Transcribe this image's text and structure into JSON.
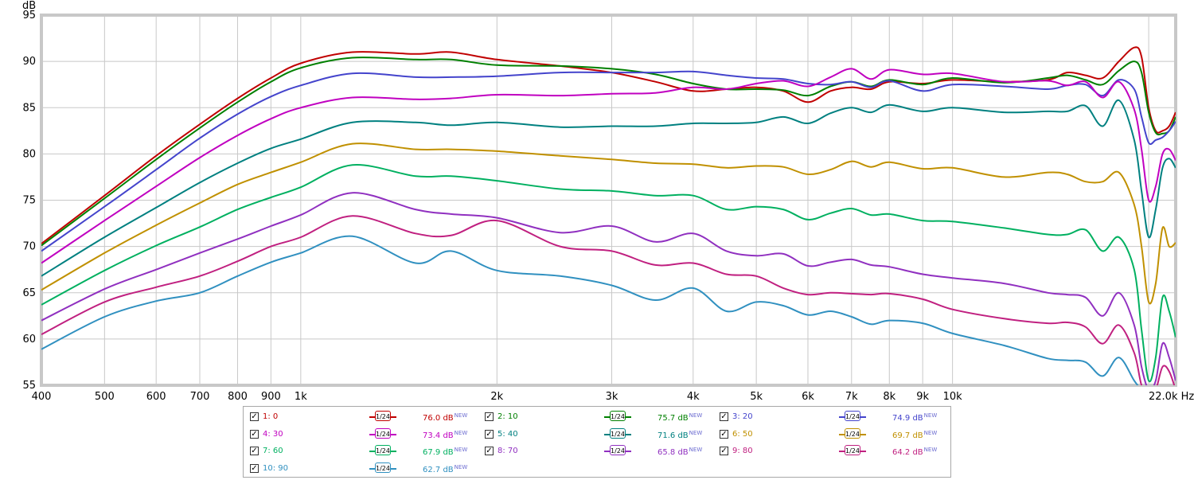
{
  "chart_data": {
    "type": "line",
    "ylabel": "dB",
    "ylim": [
      55,
      95
    ],
    "yticks": [
      55,
      60,
      65,
      70,
      75,
      80,
      85,
      90,
      95
    ],
    "xscale": "log",
    "xlim": [
      400,
      22000
    ],
    "xticks": [
      {
        "v": 400,
        "label": "400"
      },
      {
        "v": 500,
        "label": "500"
      },
      {
        "v": 600,
        "label": "600"
      },
      {
        "v": 700,
        "label": "700"
      },
      {
        "v": 800,
        "label": "800"
      },
      {
        "v": 900,
        "label": "900"
      },
      {
        "v": 1000,
        "label": "1k"
      },
      {
        "v": 2000,
        "label": "2k"
      },
      {
        "v": 3000,
        "label": "3k"
      },
      {
        "v": 4000,
        "label": "4k"
      },
      {
        "v": 5000,
        "label": "5k"
      },
      {
        "v": 6000,
        "label": "6k"
      },
      {
        "v": 7000,
        "label": "7k"
      },
      {
        "v": 8000,
        "label": "8k"
      },
      {
        "v": 9000,
        "label": "9k"
      },
      {
        "v": 10000,
        "label": "10k"
      },
      {
        "v": 22000,
        "label": "22.0k Hz"
      }
    ],
    "grid": true,
    "x": [
      400,
      500,
      600,
      700,
      800,
      900,
      1000,
      1200,
      1500,
      1700,
      2000,
      2500,
      3000,
      3500,
      4000,
      4500,
      5000,
      5500,
      6000,
      6500,
      7000,
      7500,
      8000,
      9000,
      10000,
      12000,
      14000,
      15000,
      16000,
      17000,
      18000,
      19000,
      19500,
      20000,
      20500,
      21000,
      21500,
      22000
    ],
    "series": [
      {
        "name": "1: 0",
        "color": "#c00000",
        "values": [
          70.3,
          75.5,
          79.8,
          83.2,
          86.0,
          88.2,
          89.8,
          91.0,
          90.8,
          91.0,
          90.2,
          89.5,
          88.8,
          87.8,
          86.8,
          87.0,
          87.2,
          86.8,
          85.6,
          86.8,
          87.2,
          87.0,
          87.8,
          87.6,
          88.0,
          87.8,
          88.0,
          88.8,
          88.5,
          88.2,
          90.0,
          91.5,
          90.5,
          85.0,
          82.5,
          82.5,
          83.0,
          84.5
        ]
      },
      {
        "name": "2: 10",
        "color": "#008000",
        "values": [
          70.1,
          75.2,
          79.4,
          82.8,
          85.6,
          87.8,
          89.3,
          90.4,
          90.2,
          90.2,
          89.6,
          89.5,
          89.2,
          88.6,
          87.6,
          87.0,
          87.0,
          86.9,
          86.3,
          87.3,
          87.8,
          87.3,
          88.0,
          87.5,
          88.2,
          87.7,
          88.2,
          88.5,
          88.0,
          87.5,
          89.0,
          90.0,
          88.8,
          84.5,
          82.3,
          82.2,
          82.5,
          84.0
        ]
      },
      {
        "name": "3: 20",
        "color": "#4444cc",
        "values": [
          69.5,
          74.3,
          78.3,
          81.7,
          84.3,
          86.2,
          87.4,
          88.7,
          88.3,
          88.3,
          88.4,
          88.8,
          88.8,
          88.8,
          88.9,
          88.5,
          88.2,
          88.1,
          87.6,
          87.5,
          87.8,
          87.2,
          87.9,
          86.8,
          87.5,
          87.3,
          87.0,
          87.4,
          87.5,
          86.3,
          88.0,
          87.0,
          84.0,
          81.2,
          81.5,
          81.8,
          82.5,
          83.5
        ]
      },
      {
        "name": "4: 30",
        "color": "#c000c0",
        "values": [
          68.2,
          72.8,
          76.5,
          79.6,
          82.0,
          83.8,
          85.0,
          86.1,
          85.9,
          86.0,
          86.4,
          86.3,
          86.5,
          86.6,
          87.2,
          87.0,
          87.6,
          87.9,
          87.3,
          88.3,
          89.2,
          88.1,
          89.1,
          88.6,
          88.7,
          87.8,
          87.9,
          87.4,
          87.8,
          86.1,
          87.8,
          84.8,
          80.5,
          75.0,
          76.5,
          80.0,
          80.5,
          79.3
        ]
      },
      {
        "name": "5: 40",
        "color": "#008080",
        "values": [
          66.8,
          71.0,
          74.2,
          76.9,
          79.0,
          80.6,
          81.6,
          83.4,
          83.4,
          83.1,
          83.4,
          82.9,
          83.0,
          83.0,
          83.3,
          83.3,
          83.4,
          84.0,
          83.3,
          84.4,
          85.0,
          84.5,
          85.3,
          84.6,
          85.0,
          84.5,
          84.6,
          84.6,
          85.2,
          83.0,
          85.8,
          81.5,
          76.0,
          71.0,
          74.0,
          78.5,
          79.5,
          78.5
        ]
      },
      {
        "name": "6: 50",
        "color": "#c09000",
        "values": [
          65.3,
          69.3,
          72.3,
          74.7,
          76.7,
          78.0,
          79.1,
          81.1,
          80.5,
          80.5,
          80.3,
          79.8,
          79.4,
          79.0,
          78.9,
          78.5,
          78.7,
          78.6,
          77.8,
          78.3,
          79.2,
          78.6,
          79.1,
          78.4,
          78.5,
          77.5,
          78.0,
          77.8,
          77.0,
          77.0,
          78.0,
          74.5,
          70.0,
          64.0,
          66.0,
          72.0,
          70.0,
          70.4
        ]
      },
      {
        "name": "7: 60",
        "color": "#00b060",
        "values": [
          63.7,
          67.4,
          70.1,
          72.1,
          74.0,
          75.3,
          76.4,
          78.8,
          77.6,
          77.6,
          77.1,
          76.2,
          76.0,
          75.5,
          75.5,
          74.0,
          74.3,
          74.0,
          72.9,
          73.6,
          74.1,
          73.4,
          73.5,
          72.8,
          72.7,
          72.0,
          71.3,
          71.3,
          71.8,
          69.5,
          71.0,
          67.5,
          61.0,
          55.5,
          58.0,
          64.5,
          63.0,
          60.2
        ]
      },
      {
        "name": "8: 70",
        "color": "#9030c0",
        "values": [
          62.0,
          65.4,
          67.5,
          69.3,
          70.8,
          72.2,
          73.4,
          75.8,
          74.0,
          73.5,
          73.1,
          71.5,
          72.2,
          70.5,
          71.4,
          69.5,
          69.0,
          69.2,
          67.9,
          68.3,
          68.6,
          68.0,
          67.8,
          67.0,
          66.6,
          66.0,
          65.0,
          64.8,
          64.5,
          62.5,
          65.0,
          61.5,
          57.0,
          54.5,
          55.5,
          59.5,
          58.0,
          55.5
        ]
      },
      {
        "name": "9: 80",
        "color": "#c02080",
        "values": [
          60.5,
          64.0,
          65.6,
          66.8,
          68.4,
          70.0,
          71.0,
          73.3,
          71.4,
          71.2,
          72.8,
          70.0,
          69.5,
          68.0,
          68.2,
          67.0,
          66.8,
          65.5,
          64.8,
          65.0,
          64.9,
          64.8,
          64.9,
          64.3,
          63.2,
          62.2,
          61.7,
          61.8,
          61.3,
          59.5,
          61.5,
          58.5,
          55.0,
          54.0,
          54.5,
          57.0,
          56.5,
          54.5
        ]
      },
      {
        "name": "10: 90",
        "color": "#3090c0",
        "values": [
          58.9,
          62.4,
          64.1,
          65.0,
          66.8,
          68.3,
          69.3,
          71.1,
          68.2,
          69.5,
          67.4,
          66.8,
          65.8,
          64.2,
          65.5,
          63.0,
          64.0,
          63.6,
          62.6,
          63.0,
          62.4,
          61.6,
          62.0,
          61.7,
          60.6,
          59.3,
          57.9,
          57.7,
          57.5,
          56.0,
          58.0,
          55.5,
          54.5,
          54.0,
          54.0,
          54.5,
          54.5,
          54.0
        ]
      }
    ]
  },
  "legend": [
    {
      "name": "1: 0",
      "color": "#c00000",
      "smooth": "1/24",
      "level": "76.0 dB",
      "tag": "NEW"
    },
    {
      "name": "2: 10",
      "color": "#008000",
      "smooth": "1/24",
      "level": "75.7 dB",
      "tag": "NEW"
    },
    {
      "name": "3: 20",
      "color": "#4444cc",
      "smooth": "1/24",
      "level": "74.9 dB",
      "tag": "NEW"
    },
    {
      "name": "4: 30",
      "color": "#c000c0",
      "smooth": "1/24",
      "level": "73.4 dB",
      "tag": "NEW"
    },
    {
      "name": "5: 40",
      "color": "#008080",
      "smooth": "1/24",
      "level": "71.6 dB",
      "tag": "NEW"
    },
    {
      "name": "6: 50",
      "color": "#c09000",
      "smooth": "1/24",
      "level": "69.7 dB",
      "tag": "NEW"
    },
    {
      "name": "7: 60",
      "color": "#00b060",
      "smooth": "1/24",
      "level": "67.9 dB",
      "tag": "NEW"
    },
    {
      "name": "8: 70",
      "color": "#9030c0",
      "smooth": "1/24",
      "level": "65.8 dB",
      "tag": "NEW"
    },
    {
      "name": "9: 80",
      "color": "#c02080",
      "smooth": "1/24",
      "level": "64.2 dB",
      "tag": "NEW"
    },
    {
      "name": "10: 90",
      "color": "#3090c0",
      "smooth": "1/24",
      "level": "62.7 dB",
      "tag": "NEW"
    }
  ]
}
